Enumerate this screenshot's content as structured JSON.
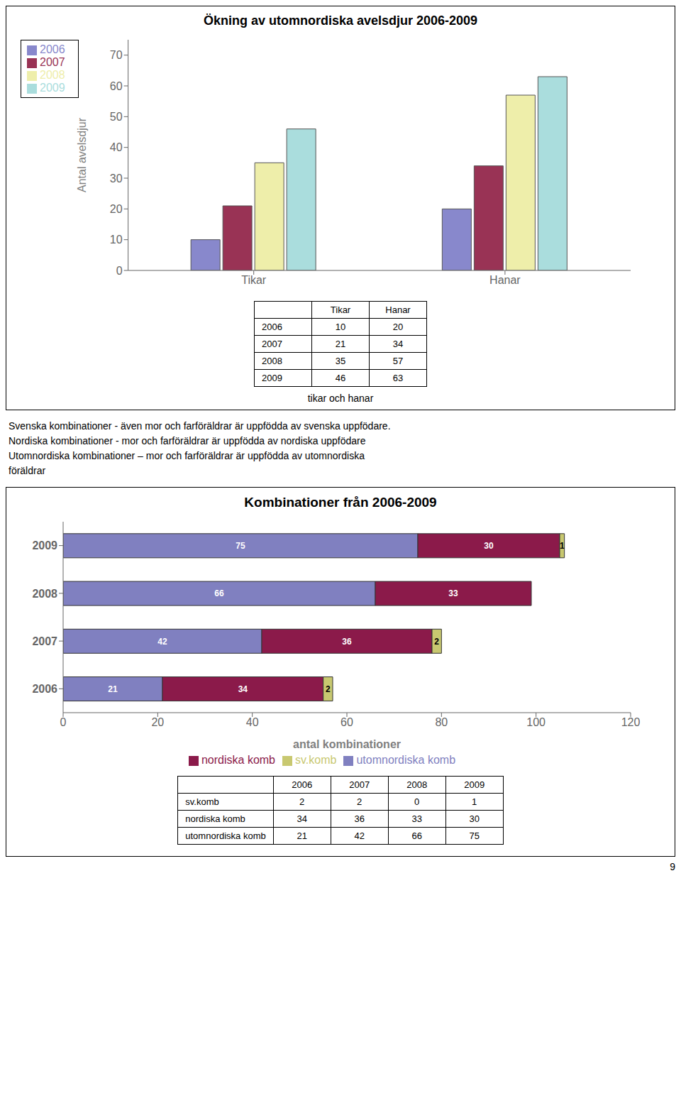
{
  "chart_data": [
    {
      "type": "bar",
      "title": "Ökning av utomnordiska avelsdjur 2006-2009",
      "categories": [
        "Tikar",
        "Hanar"
      ],
      "series": [
        {
          "name": "2006",
          "color": "#8888cc",
          "values": [
            10,
            20
          ]
        },
        {
          "name": "2007",
          "color": "#993355",
          "values": [
            21,
            34
          ]
        },
        {
          "name": "2008",
          "color": "#eeeeaa",
          "values": [
            35,
            57
          ]
        },
        {
          "name": "2009",
          "color": "#aadddd",
          "values": [
            46,
            63
          ]
        }
      ],
      "ylabel": "Antal avelsdjur",
      "xlabel": "tikar och hanar",
      "ylim": [
        0,
        75
      ],
      "yticks": [
        0,
        10,
        20,
        30,
        40,
        50,
        60,
        70
      ],
      "grid": false,
      "legend": "upper left",
      "annotations": [
        "Svenska kombinationer - även mor och farföräldrar är uppfödda av svenska uppfödare.",
        "Nordiska kombinationer - mor och farföräldrar är uppfödda av nordiska uppfödare",
        "Utomnordiska kombinationer – mor och farföräldrar är uppfödda av utomnordiska",
        "föräldrar"
      ]
    },
    {
      "type": "bar",
      "orientation": "horizontal",
      "stacked": true,
      "data_labels": true,
      "title": "Kombinationer från 2006-2009",
      "categories": [
        "2006",
        "2007",
        "2008",
        "2009"
      ],
      "series": [
        {
          "name": "utomnordiska komb",
          "color": "#8080c0",
          "values": [
            21,
            42,
            66,
            75
          ]
        },
        {
          "name": "nordiska komb",
          "color": "#8b1a4a",
          "values": [
            34,
            36,
            33,
            30
          ]
        },
        {
          "name": "sv.komb",
          "color": "#c8c870",
          "values": [
            2,
            2,
            0,
            1
          ]
        }
      ],
      "xlabel": "antal kombinationer",
      "xlim": [
        0,
        120
      ],
      "xticks": [
        0,
        20,
        40,
        60,
        80,
        100,
        120
      ],
      "grid": false,
      "legend": "bottom",
      "annotations": [
        "9"
      ]
    }
  ]
}
